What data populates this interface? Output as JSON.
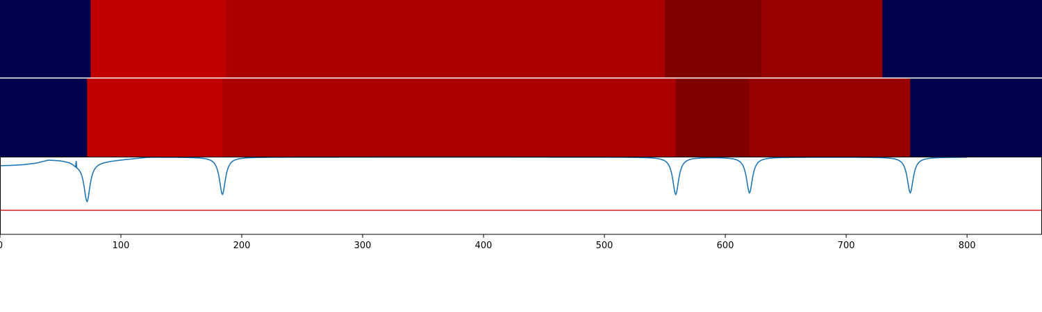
{
  "chart_data": [
    {
      "type": "heatmap",
      "xlim": [
        0,
        862
      ],
      "segments": [
        {
          "start": 0,
          "end": 75,
          "color": "#00004c"
        },
        {
          "start": 75,
          "end": 187,
          "color": "#c00000"
        },
        {
          "start": 187,
          "end": 550,
          "color": "#aa0000"
        },
        {
          "start": 550,
          "end": 630,
          "color": "#800000"
        },
        {
          "start": 630,
          "end": 730,
          "color": "#960000"
        },
        {
          "start": 730,
          "end": 862,
          "color": "#00004c"
        }
      ]
    },
    {
      "type": "heatmap",
      "xlim": [
        0,
        862
      ],
      "segments": [
        {
          "start": 0,
          "end": 72,
          "color": "#00004c"
        },
        {
          "start": 72,
          "end": 184,
          "color": "#c00000"
        },
        {
          "start": 184,
          "end": 559,
          "color": "#aa0000"
        },
        {
          "start": 559,
          "end": 620,
          "color": "#800000"
        },
        {
          "start": 620,
          "end": 753,
          "color": "#960000"
        },
        {
          "start": 753,
          "end": 862,
          "color": "#00004c"
        }
      ]
    },
    {
      "type": "line",
      "xlim": [
        0,
        862
      ],
      "ylim": [
        0,
        1
      ],
      "xticks": [
        0,
        100,
        200,
        300,
        400,
        500,
        600,
        700,
        800
      ],
      "tick_labels": [
        "0",
        "100",
        "200",
        "300",
        "400",
        "500",
        "600",
        "700",
        "800"
      ],
      "series": [
        {
          "color": "#1f77b4",
          "baseline_points": [
            [
              0,
              0.885
            ],
            [
              10,
              0.89
            ],
            [
              20,
              0.9
            ],
            [
              30,
              0.92
            ],
            [
              40,
              0.96
            ],
            [
              50,
              0.955
            ],
            [
              58,
              0.94
            ],
            [
              63,
              0.91
            ]
          ],
          "dips": [
            {
              "center": 72,
              "depth": 0.5,
              "width": 3.0
            },
            {
              "center": 184,
              "depth": 0.48,
              "width": 3.0
            },
            {
              "center": 559,
              "depth": 0.48,
              "width": 3.0
            },
            {
              "center": 620,
              "depth": 0.46,
              "width": 3.0
            },
            {
              "center": 753,
              "depth": 0.46,
              "width": 3.0
            }
          ]
        },
        {
          "color": "#d62728",
          "values": [
            [
              0,
              0.31
            ],
            [
              862,
              0.31
            ]
          ]
        }
      ]
    }
  ]
}
